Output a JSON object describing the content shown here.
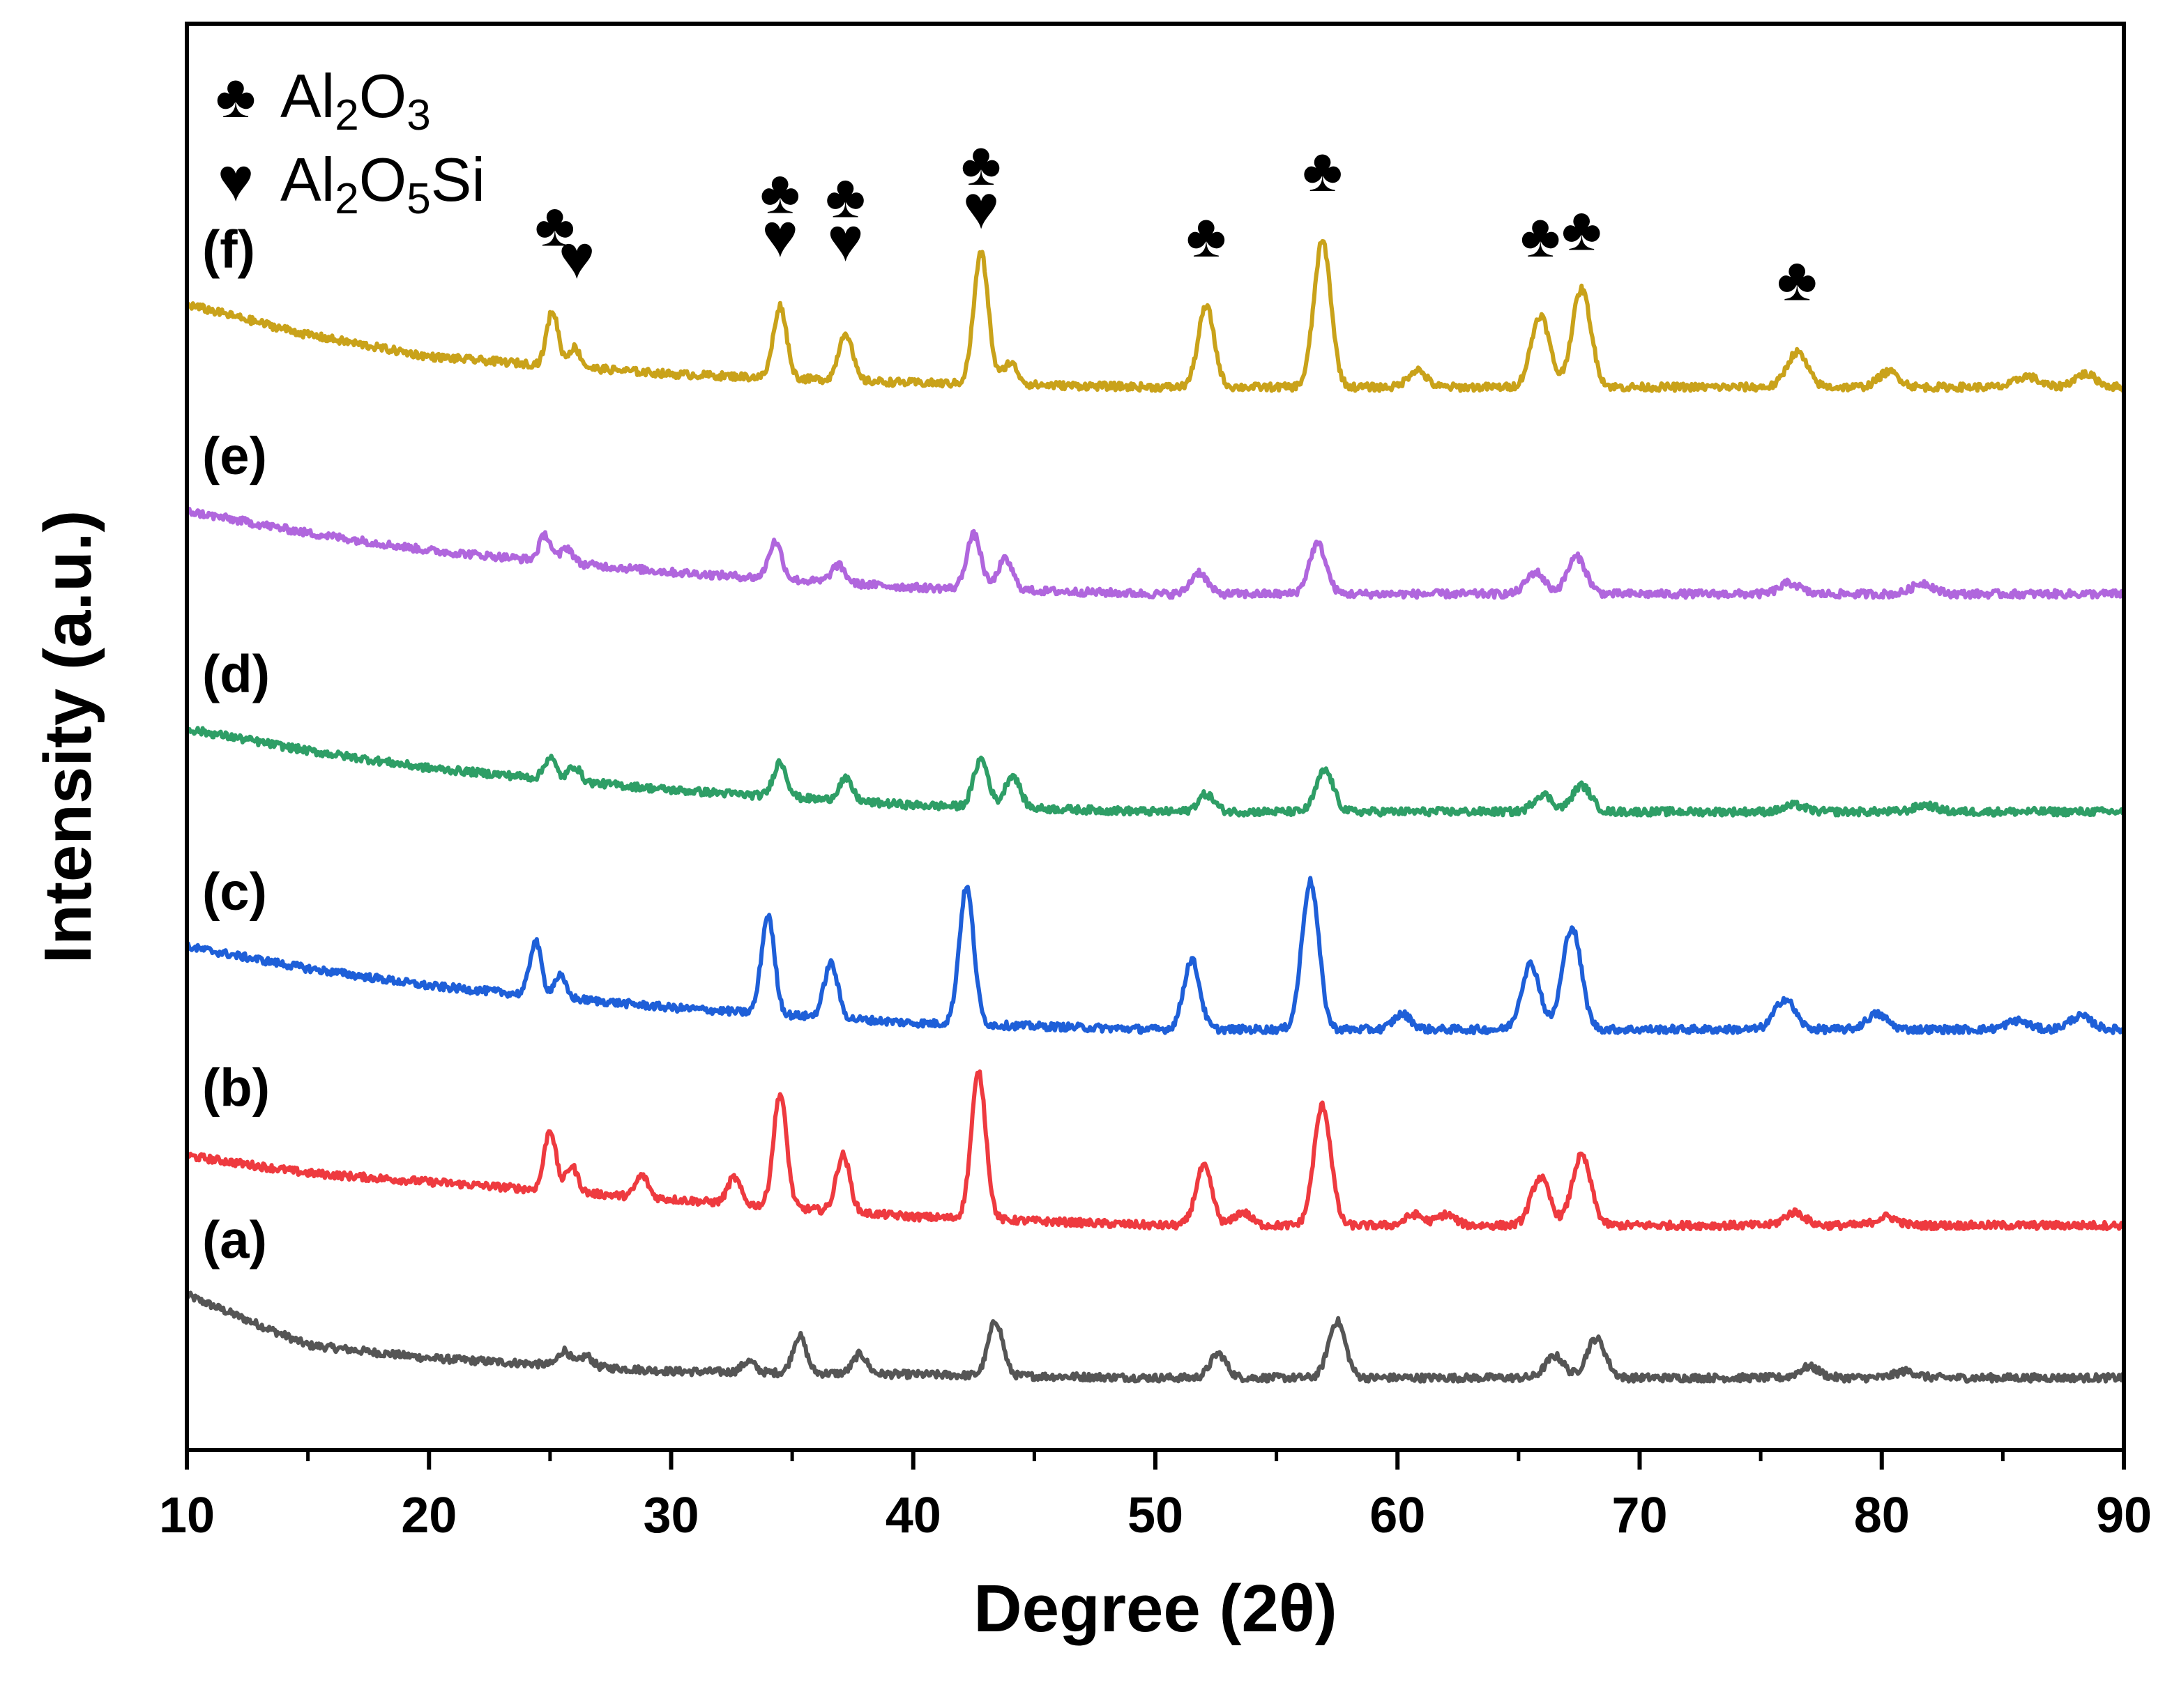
{
  "chart_data": {
    "type": "line",
    "title": "",
    "xlabel": "Degree (2θ)",
    "ylabel": "Intensity (a.u.)",
    "xlim": [
      10,
      90
    ],
    "xticks": [
      "10",
      "20",
      "30",
      "40",
      "50",
      "60",
      "70",
      "80",
      "90"
    ],
    "ylim": [
      0,
      6.5
    ],
    "yticks_visible": false,
    "legend": {
      "position": "top-left",
      "entries": [
        {
          "symbol": "♣",
          "parts": [
            [
              "Al",
              ""
            ],
            [
              "2",
              "sub"
            ],
            [
              "O",
              ""
            ],
            [
              "3",
              "sub"
            ]
          ]
        },
        {
          "symbol": "♥",
          "parts": [
            [
              "Al",
              ""
            ],
            [
              "2",
              "sub"
            ],
            [
              "O",
              ""
            ],
            [
              "5",
              "sub"
            ],
            [
              "Si",
              ""
            ]
          ]
        }
      ]
    },
    "series": [
      {
        "name": "(a)",
        "color": "#555555",
        "offset": 0.3,
        "background": [
          [
            10,
            0.38
          ],
          [
            15,
            0.15
          ],
          [
            20,
            0.09
          ],
          [
            30,
            0.03
          ],
          [
            50,
            0.0
          ],
          [
            90,
            0.0
          ]
        ],
        "peaks": [
          [
            25.6,
            0.07
          ],
          [
            26.5,
            0.05
          ],
          [
            33.2,
            0.05
          ],
          [
            35.3,
            0.17
          ],
          [
            37.8,
            0.09
          ],
          [
            43.4,
            0.25
          ],
          [
            52.6,
            0.11
          ],
          [
            57.5,
            0.26
          ],
          [
            66.5,
            0.1
          ],
          [
            68.2,
            0.18
          ],
          [
            77.0,
            0.05
          ],
          [
            81.0,
            0.03
          ]
        ]
      },
      {
        "name": "(b)",
        "color": "#ee3a3f",
        "offset": 1.0,
        "background": [
          [
            10,
            0.32
          ],
          [
            15,
            0.24
          ],
          [
            20,
            0.2
          ],
          [
            30,
            0.12
          ],
          [
            40,
            0.04
          ],
          [
            50,
            0.0
          ],
          [
            90,
            0.0
          ]
        ],
        "peaks": [
          [
            25.0,
            0.28
          ],
          [
            25.9,
            0.12
          ],
          [
            28.8,
            0.1
          ],
          [
            32.6,
            0.12
          ],
          [
            34.5,
            0.52
          ],
          [
            37.1,
            0.26
          ],
          [
            42.7,
            0.67
          ],
          [
            52.0,
            0.27
          ],
          [
            53.6,
            0.06
          ],
          [
            56.9,
            0.55
          ],
          [
            60.7,
            0.05
          ],
          [
            62.0,
            0.05
          ],
          [
            65.9,
            0.22
          ],
          [
            67.6,
            0.32
          ],
          [
            76.4,
            0.06
          ],
          [
            80.2,
            0.04
          ]
        ]
      },
      {
        "name": "(c)",
        "color": "#1e5fd8",
        "offset": 1.9,
        "background": [
          [
            10,
            0.38
          ],
          [
            15,
            0.28
          ],
          [
            20,
            0.2
          ],
          [
            30,
            0.1
          ],
          [
            40,
            0.03
          ],
          [
            50,
            0.0
          ],
          [
            90,
            0.0
          ]
        ],
        "peaks": [
          [
            24.4,
            0.25
          ],
          [
            25.4,
            0.1
          ],
          [
            34.0,
            0.45
          ],
          [
            36.6,
            0.25
          ],
          [
            42.2,
            0.63
          ],
          [
            51.5,
            0.32
          ],
          [
            56.4,
            0.68
          ],
          [
            60.2,
            0.07
          ],
          [
            65.5,
            0.3
          ],
          [
            67.2,
            0.47
          ],
          [
            76.0,
            0.14
          ],
          [
            79.8,
            0.07
          ],
          [
            85.6,
            0.04
          ],
          [
            88.2,
            0.06
          ]
        ]
      },
      {
        "name": "(d)",
        "color": "#2e9e66",
        "offset": 2.9,
        "background": [
          [
            10,
            0.38
          ],
          [
            15,
            0.28
          ],
          [
            20,
            0.2
          ],
          [
            30,
            0.1
          ],
          [
            40,
            0.03
          ],
          [
            50,
            0.0
          ],
          [
            90,
            0.0
          ]
        ],
        "peaks": [
          [
            25.0,
            0.1
          ],
          [
            26.0,
            0.07
          ],
          [
            34.5,
            0.16
          ],
          [
            37.2,
            0.1
          ],
          [
            42.8,
            0.22
          ],
          [
            44.1,
            0.15
          ],
          [
            52.1,
            0.08
          ],
          [
            57.0,
            0.19
          ],
          [
            66.0,
            0.08
          ],
          [
            67.6,
            0.12
          ],
          [
            76.4,
            0.03
          ],
          [
            81.8,
            0.03
          ]
        ]
      },
      {
        "name": "(e)",
        "color": "#b066dd",
        "offset": 3.9,
        "background": [
          [
            10,
            0.38
          ],
          [
            15,
            0.28
          ],
          [
            20,
            0.2
          ],
          [
            30,
            0.1
          ],
          [
            40,
            0.03
          ],
          [
            50,
            0.0
          ],
          [
            90,
            0.0
          ]
        ],
        "peaks": [
          [
            24.8,
            0.12
          ],
          [
            25.7,
            0.07
          ],
          [
            34.3,
            0.17
          ],
          [
            36.9,
            0.08
          ],
          [
            42.5,
            0.25
          ],
          [
            43.8,
            0.14
          ],
          [
            51.8,
            0.1
          ],
          [
            56.7,
            0.23
          ],
          [
            65.7,
            0.1
          ],
          [
            67.4,
            0.17
          ],
          [
            76.2,
            0.05
          ],
          [
            81.7,
            0.05
          ]
        ]
      },
      {
        "name": "(f)",
        "color": "#c9a21a",
        "offset": 4.85,
        "background": [
          [
            10,
            0.38
          ],
          [
            15,
            0.24
          ],
          [
            20,
            0.14
          ],
          [
            30,
            0.06
          ],
          [
            40,
            0.02
          ],
          [
            50,
            0.0
          ],
          [
            90,
            0.0
          ]
        ],
        "peaks": [
          [
            25.1,
            0.25
          ],
          [
            26.0,
            0.09
          ],
          [
            34.5,
            0.33
          ],
          [
            37.2,
            0.22
          ],
          [
            42.8,
            0.6
          ],
          [
            44.0,
            0.1
          ],
          [
            52.1,
            0.37
          ],
          [
            56.9,
            0.67
          ],
          [
            60.8,
            0.08
          ],
          [
            65.9,
            0.33
          ],
          [
            67.6,
            0.45
          ],
          [
            76.5,
            0.16
          ],
          [
            80.3,
            0.07
          ],
          [
            86.0,
            0.05
          ],
          [
            88.4,
            0.06
          ]
        ]
      }
    ],
    "annotations": [
      {
        "x": 25.2,
        "y": 5.5,
        "symbol": "♣"
      },
      {
        "x": 26.1,
        "y": 5.35,
        "symbol": "♥"
      },
      {
        "x": 34.5,
        "y": 5.65,
        "symbol": "♣"
      },
      {
        "x": 34.5,
        "y": 5.45,
        "symbol": "♥"
      },
      {
        "x": 37.2,
        "y": 5.63,
        "symbol": "♣"
      },
      {
        "x": 37.2,
        "y": 5.43,
        "symbol": "♥"
      },
      {
        "x": 42.8,
        "y": 5.78,
        "symbol": "♣"
      },
      {
        "x": 42.8,
        "y": 5.58,
        "symbol": "♥"
      },
      {
        "x": 52.1,
        "y": 5.45,
        "symbol": "♣"
      },
      {
        "x": 56.9,
        "y": 5.75,
        "symbol": "♣"
      },
      {
        "x": 65.9,
        "y": 5.45,
        "symbol": "♣"
      },
      {
        "x": 67.6,
        "y": 5.48,
        "symbol": "♣"
      },
      {
        "x": 76.5,
        "y": 5.25,
        "symbol": "♣"
      }
    ]
  }
}
